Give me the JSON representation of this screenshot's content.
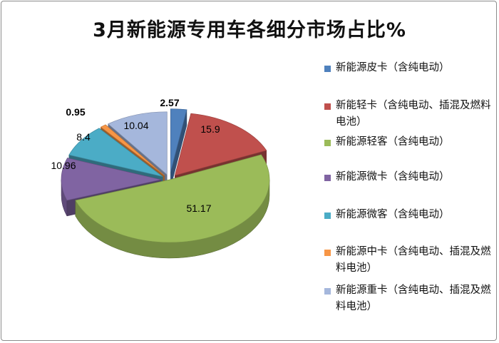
{
  "chart_data": {
    "type": "pie",
    "title": "3月新能源专用车各细分市场占比%",
    "categories": [
      "新能源皮卡（含纯电动）",
      "新能轻卡（含纯电动、插混及燃料电池）",
      "新能源轻客（含纯电动）",
      "新能源微卡（含纯电动）",
      "新能源微客（含纯电动）",
      "新能源中卡（含纯电动、插混及燃料电池）",
      "新能源重卡（含纯电动、插混及燃料电池）"
    ],
    "values": [
      2.57,
      15.9,
      51.17,
      10.96,
      8.4,
      0.95,
      10.04
    ],
    "data_labels": [
      "2.57",
      "15.9",
      "51.17",
      "10.96",
      "8.4",
      "0.95",
      "10.04"
    ],
    "colors": [
      "#4f81bd",
      "#c0504d",
      "#9bbb59",
      "#8064a2",
      "#4bacc6",
      "#f79646",
      "#a5b7dc"
    ],
    "exploded": true,
    "three_d": true,
    "legend_position": "right"
  }
}
